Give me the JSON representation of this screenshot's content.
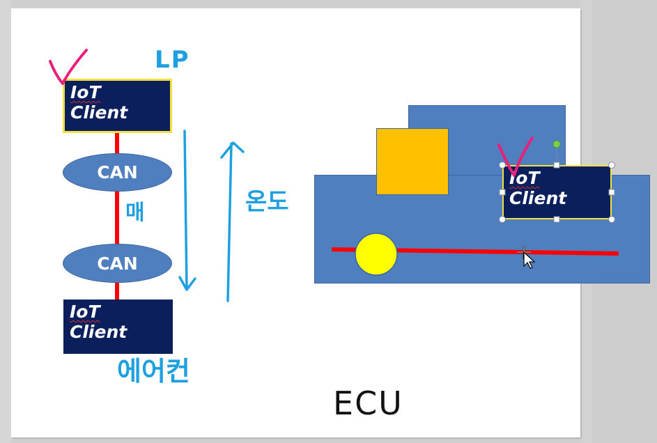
{
  "left_chain": {
    "top_client": {
      "line1": "IoT",
      "line2": "Client"
    },
    "can_top": "CAN",
    "can_bottom": "CAN",
    "bottom_client": {
      "line1": "IoT",
      "line2": "Client"
    }
  },
  "car_client": {
    "line1": "IoT",
    "line2": "Client"
  },
  "handwriting": {
    "lp": "LP",
    "wire": "매",
    "temp": "온도",
    "aircon": "에어컨",
    "ecu": "ECU"
  },
  "colors": {
    "client_fill": "#0b1f5c",
    "can_fill": "#4f7fbf",
    "car_fill": "#4f7fbf",
    "bus_line": "#ff0000",
    "orange_block": "#ffc000",
    "yellow_circle": "#ffff00",
    "pen_blue": "#1ea0e0",
    "pen_pink": "#e8207a"
  }
}
